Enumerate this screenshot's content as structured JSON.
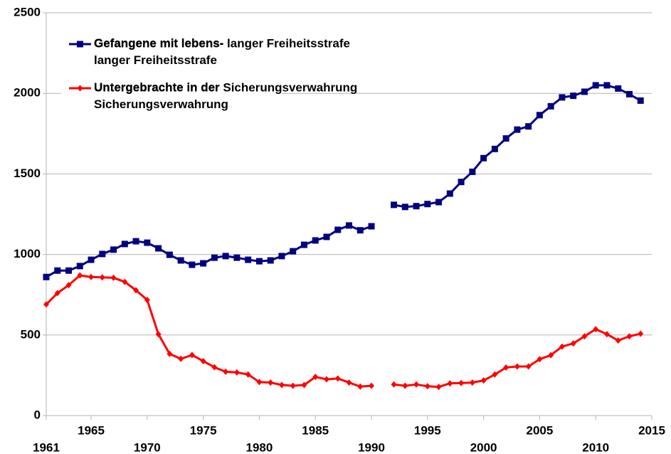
{
  "chart_data": {
    "type": "line",
    "x": [
      1961,
      1962,
      1963,
      1964,
      1965,
      1966,
      1967,
      1968,
      1969,
      1970,
      1971,
      1972,
      1973,
      1974,
      1975,
      1976,
      1977,
      1978,
      1979,
      1980,
      1981,
      1982,
      1983,
      1984,
      1985,
      1986,
      1987,
      1988,
      1989,
      1990,
      1991,
      1992,
      1993,
      1994,
      1995,
      1996,
      1997,
      1998,
      1999,
      2000,
      2001,
      2002,
      2003,
      2004,
      2005,
      2006,
      2007,
      2008,
      2009,
      2010,
      2011,
      2012,
      2013,
      2014
    ],
    "series": [
      {
        "name": "Gefangene mit lebens-\nlanger Freiheitsstrafe",
        "color": "#000080",
        "marker": "square",
        "values": [
          860,
          900,
          900,
          928,
          967,
          1003,
          1030,
          1065,
          1082,
          1073,
          1038,
          998,
          963,
          936,
          945,
          980,
          990,
          980,
          967,
          958,
          963,
          990,
          1020,
          1060,
          1087,
          1109,
          1153,
          1180,
          1150,
          1175,
          null,
          1308,
          1295,
          1300,
          1313,
          1325,
          1378,
          1450,
          1513,
          1598,
          1655,
          1720,
          1775,
          1795,
          1865,
          1920,
          1975,
          1985,
          2010,
          2050,
          2050,
          2030,
          1995,
          1955
        ]
      },
      {
        "name": "Untergebrachte in der\nSicherungsverwahrung",
        "color": "#ff0000",
        "marker": "diamond",
        "values": [
          690,
          760,
          810,
          870,
          860,
          858,
          855,
          830,
          778,
          718,
          505,
          383,
          352,
          376,
          338,
          300,
          272,
          268,
          255,
          208,
          205,
          190,
          185,
          190,
          240,
          225,
          230,
          205,
          180,
          185,
          null,
          193,
          185,
          193,
          182,
          178,
          200,
          202,
          205,
          218,
          255,
          298,
          305,
          305,
          350,
          375,
          428,
          448,
          492,
          536,
          505,
          466,
          492,
          508
        ]
      }
    ],
    "xlim": [
      1961,
      2015
    ],
    "xticks": [
      1961,
      1965,
      1970,
      1975,
      1980,
      1985,
      1990,
      1995,
      2000,
      2005,
      2010,
      2015
    ],
    "ylim": [
      0,
      2500
    ],
    "yticks": [
      0,
      500,
      1000,
      1500,
      2000,
      2500
    ],
    "grid": true,
    "legend": "upper left"
  }
}
